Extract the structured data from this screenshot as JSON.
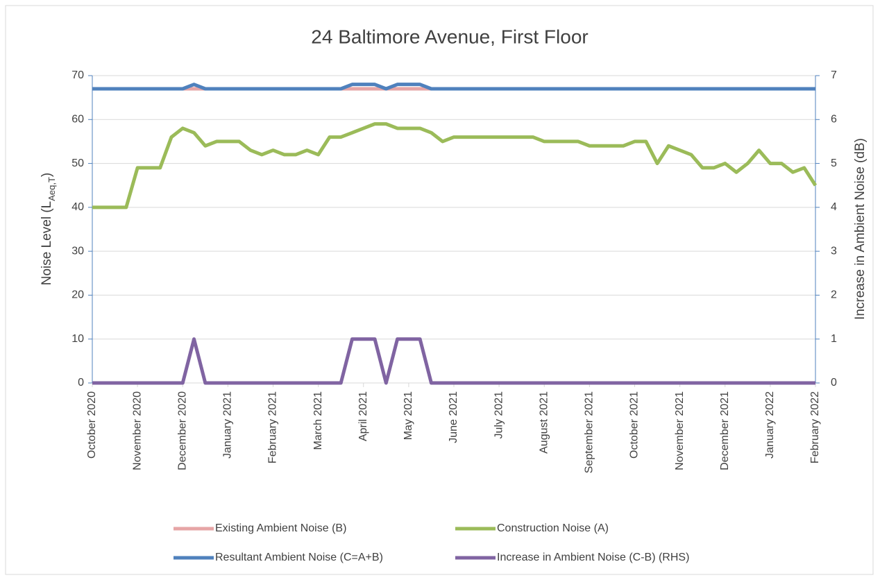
{
  "chart_data": {
    "type": "line",
    "title": "24 Baltimore Avenue, First Floor",
    "y_label": {
      "text": "Noise Level (L",
      "subscript": "Aeq,T",
      "suffix": ")"
    },
    "y2_label": "Increase in Ambient Noise (dB)",
    "categories": [
      "October 2020",
      null,
      null,
      null,
      "November 2020",
      null,
      null,
      null,
      "December 2020",
      null,
      null,
      null,
      "January 2021",
      null,
      null,
      null,
      "February 2021",
      null,
      null,
      null,
      "March 2021",
      null,
      null,
      null,
      "April 2021",
      null,
      null,
      null,
      "May 2021",
      null,
      null,
      null,
      "June 2021",
      null,
      null,
      null,
      "July 2021",
      null,
      null,
      null,
      "August 2021",
      null,
      null,
      null,
      "September 2021",
      null,
      null,
      null,
      "October 2021",
      null,
      null,
      null,
      "November 2021",
      null,
      null,
      null,
      "December 2021",
      null,
      null,
      null,
      "January 2022",
      null,
      null,
      null,
      "February 2022"
    ],
    "ylim": [
      0,
      70
    ],
    "yticks": [
      0,
      10,
      20,
      30,
      40,
      50,
      60,
      70
    ],
    "y2lim": [
      0,
      7
    ],
    "y2ticks": [
      0,
      1,
      2,
      3,
      4,
      5,
      6,
      7
    ],
    "grid": true,
    "series": [
      {
        "name": "Existing Ambient Noise (B)",
        "color": "#e6a5a6",
        "values": [
          67,
          67,
          67,
          67,
          67,
          67,
          67,
          67,
          67,
          67,
          67,
          67,
          67,
          67,
          67,
          67,
          67,
          67,
          67,
          67,
          67,
          67,
          67,
          67,
          67,
          67,
          67,
          67,
          67,
          67,
          67,
          67,
          67,
          67,
          67,
          67,
          67,
          67,
          67,
          67,
          67,
          67,
          67,
          67,
          67,
          67,
          67,
          67,
          67,
          67,
          67,
          67,
          67,
          67,
          67,
          67,
          67,
          67,
          67,
          67,
          67,
          67,
          67,
          67,
          67
        ]
      },
      {
        "name": "Construction Noise (A)",
        "color": "#9bbb59",
        "values": [
          40,
          40,
          40,
          40,
          49,
          49,
          49,
          56,
          58,
          57,
          54,
          55,
          55,
          55,
          53,
          52,
          53,
          52,
          52,
          53,
          52,
          56,
          56,
          57,
          58,
          59,
          59,
          58,
          58,
          58,
          57,
          55,
          56,
          56,
          56,
          56,
          56,
          56,
          56,
          56,
          55,
          55,
          55,
          55,
          54,
          54,
          54,
          54,
          55,
          55,
          50,
          54,
          53,
          52,
          49,
          49,
          50,
          48,
          50,
          53,
          50,
          50,
          48,
          49,
          45
        ]
      },
      {
        "name": "Resultant Ambient Noise (C=A+B)",
        "color": "#4f81bd",
        "values": [
          67,
          67,
          67,
          67,
          67,
          67,
          67,
          67,
          67,
          68,
          67,
          67,
          67,
          67,
          67,
          67,
          67,
          67,
          67,
          67,
          67,
          67,
          67,
          68,
          68,
          68,
          67,
          68,
          68,
          68,
          67,
          67,
          67,
          67,
          67,
          67,
          67,
          67,
          67,
          67,
          67,
          67,
          67,
          67,
          67,
          67,
          67,
          67,
          67,
          67,
          67,
          67,
          67,
          67,
          67,
          67,
          67,
          67,
          67,
          67,
          67,
          67,
          67,
          67,
          67
        ]
      },
      {
        "name": "Increase in Ambient Noise (C-B) (RHS)",
        "color": "#8064a2",
        "axis": "y2",
        "values": [
          0,
          0,
          0,
          0,
          0,
          0,
          0,
          0,
          0,
          1,
          0,
          0,
          0,
          0,
          0,
          0,
          0,
          0,
          0,
          0,
          0,
          0,
          0,
          1,
          1,
          1,
          0,
          1,
          1,
          1,
          0,
          0,
          0,
          0,
          0,
          0,
          0,
          0,
          0,
          0,
          0,
          0,
          0,
          0,
          0,
          0,
          0,
          0,
          0,
          0,
          0,
          0,
          0,
          0,
          0,
          0,
          0,
          0,
          0,
          0,
          0,
          0,
          0,
          0,
          0
        ]
      }
    ]
  }
}
